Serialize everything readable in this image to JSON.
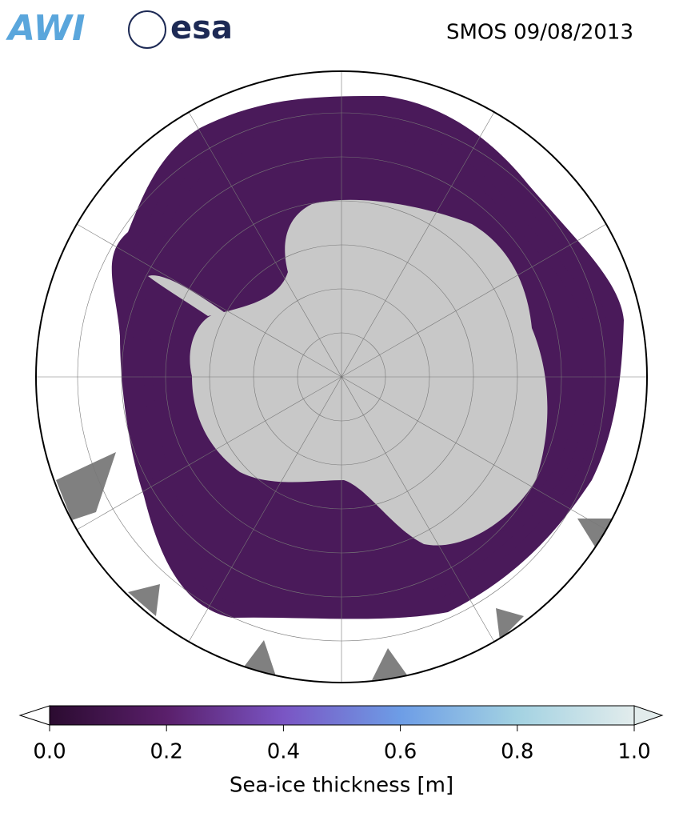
{
  "header": {
    "logos": [
      "AWI",
      "esa"
    ],
    "title": "SMOS 09/08/2013"
  },
  "colorbar": {
    "label": "Sea-ice thickness [m]",
    "lim": [
      0,
      1
    ],
    "ticks": [
      {
        "value": 0,
        "label": "0.0"
      },
      {
        "value": 0.2,
        "label": "0.2"
      },
      {
        "value": 0.4,
        "label": "0.4"
      },
      {
        "value": 0.6,
        "label": "0.6"
      },
      {
        "value": 0.8,
        "label": "0.8"
      },
      {
        "value": 1,
        "label": "1.0"
      }
    ],
    "colors": [
      "#2b0b30",
      "#5a1f6b",
      "#7a55c4",
      "#6d9de6",
      "#a3d2e2",
      "#e2ecec"
    ]
  }
}
